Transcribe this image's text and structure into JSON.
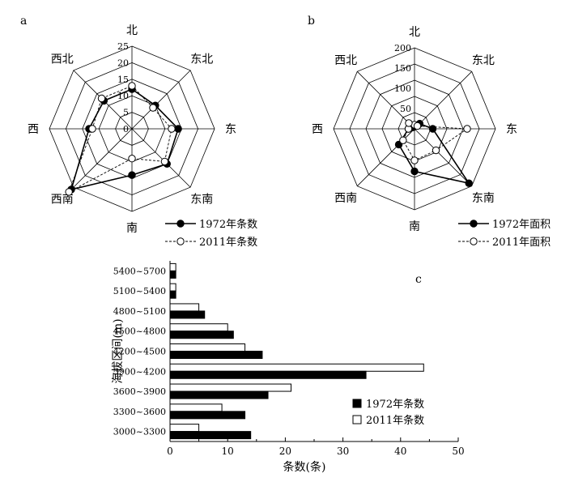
{
  "chart_data": [
    {
      "type": "radar",
      "panel_label": "a",
      "directions": [
        "北",
        "东北",
        "东",
        "东南",
        "南",
        "西南",
        "西",
        "西北"
      ],
      "rlim": [
        0,
        25
      ],
      "ticks": [
        "0",
        "5",
        "10",
        "15",
        "20",
        "25"
      ],
      "grid": true,
      "legend_position": "bottom-right",
      "series": [
        {
          "name": "1972年条数",
          "values": [
            12,
            10,
            14,
            15,
            14,
            26,
            13,
            12
          ],
          "style": "solid-filled"
        },
        {
          "name": "2011年条数",
          "values": [
            13,
            9,
            12,
            14,
            9,
            27,
            12,
            13
          ],
          "style": "dashed-open"
        }
      ]
    },
    {
      "type": "radar",
      "panel_label": "b",
      "directions": [
        "北",
        "东北",
        "东",
        "东南",
        "南",
        "西南",
        "西",
        "西北"
      ],
      "rlim": [
        0,
        200
      ],
      "ticks": [
        "50",
        "100",
        "150",
        "200"
      ],
      "grid": true,
      "legend_position": "bottom-right",
      "series": [
        {
          "name": "1972年面积",
          "values": [
            8,
            18,
            45,
            190,
            105,
            55,
            15,
            5
          ],
          "style": "solid-filled"
        },
        {
          "name": "2011年面积",
          "values": [
            10,
            10,
            130,
            75,
            78,
            40,
            15,
            20
          ],
          "style": "dashed-open"
        }
      ]
    },
    {
      "type": "bar",
      "orientation": "horizontal",
      "panel_label": "c",
      "categories": [
        "3000~3300",
        "3300~3600",
        "3600~3900",
        "3900~4200",
        "4200~4500",
        "4500~4800",
        "4800~5100",
        "5100~5400",
        "5400~5700"
      ],
      "series": [
        {
          "name": "1972年条数",
          "values": [
            14,
            13,
            17,
            34,
            16,
            11,
            6,
            1,
            1
          ],
          "fill": "#000000"
        },
        {
          "name": "2011年条数",
          "values": [
            5,
            9,
            21,
            44,
            13,
            10,
            5,
            1,
            1
          ],
          "fill": "#ffffff"
        }
      ],
      "xlabel": "条数(条)",
      "ylabel": "海拔区间(m)",
      "xlim": [
        0,
        50
      ],
      "xticks": [
        "0",
        "10",
        "20",
        "30",
        "40",
        "50"
      ],
      "legend_position": "lower-right"
    }
  ]
}
